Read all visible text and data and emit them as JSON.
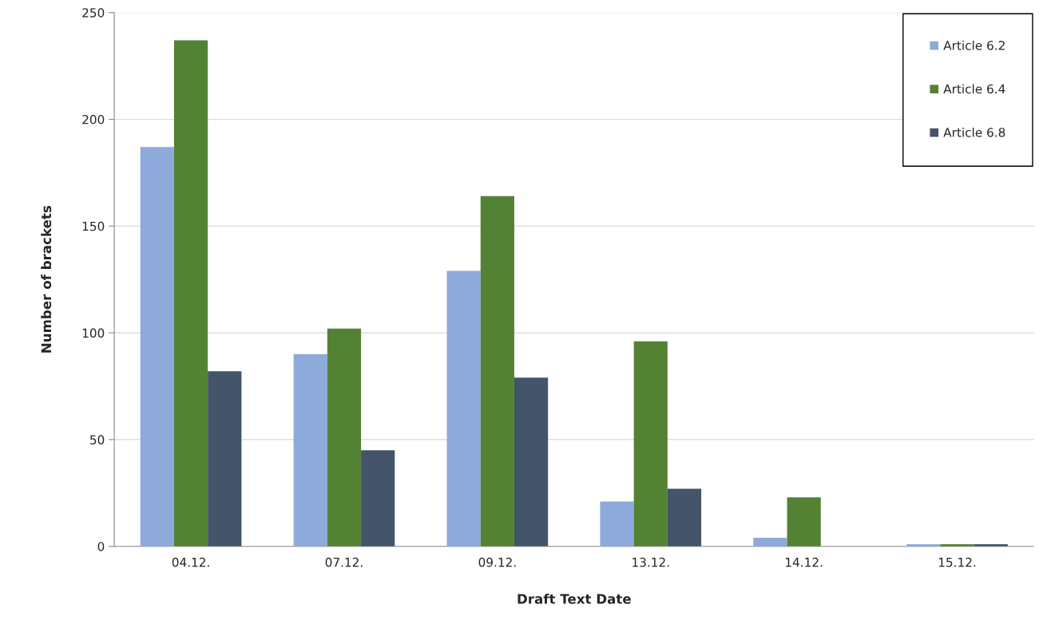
{
  "chart_data": {
    "type": "bar",
    "xlabel": "Draft Text Date",
    "ylabel": "Number of brackets",
    "categories": [
      "04.12.",
      "07.12.",
      "09.12.",
      "13.12.",
      "14.12.",
      "15.12."
    ],
    "series": [
      {
        "name": "Article 6.2",
        "color": "#8eaadb",
        "values": [
          187,
          90,
          129,
          21,
          4,
          1
        ]
      },
      {
        "name": "Article 6.4",
        "color": "#548235",
        "values": [
          237,
          102,
          164,
          96,
          23,
          1
        ]
      },
      {
        "name": "Article 6.8",
        "color": "#44546a",
        "values": [
          82,
          45,
          79,
          27,
          null,
          1
        ]
      }
    ],
    "ylim": [
      0,
      250
    ],
    "yticks": [
      0,
      50,
      100,
      150,
      200,
      250
    ],
    "grid": "y",
    "legend": "top right"
  }
}
